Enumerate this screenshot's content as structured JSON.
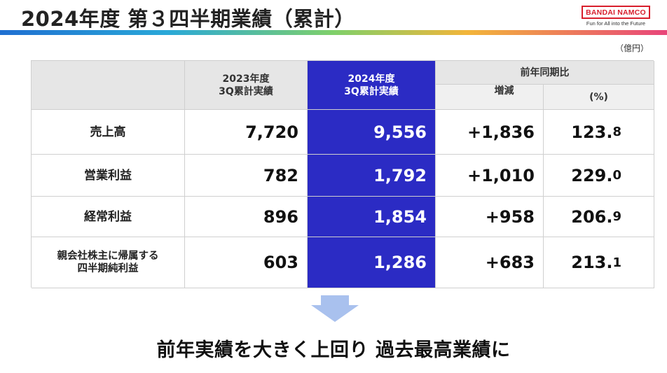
{
  "title": "2024年度 第３四半期業績（累計）",
  "logo": {
    "brand": "BANDAI NAMCO",
    "tagline": "Fun for All into the Future",
    "color": "#d81e2c"
  },
  "unit": "（億円）",
  "table": {
    "headers": {
      "prev_line1": "2023年度",
      "prev_line2": "3Q累計実績",
      "curr_line1": "2024年度",
      "curr_line2": "3Q累計実績",
      "yoy": "前年同期比",
      "change": "増減",
      "percent": "(%)"
    },
    "rows": [
      {
        "label": "売上高",
        "label2": "",
        "prev": "7,720",
        "curr": "9,556",
        "change": "+1,836",
        "pct_int": "123.",
        "pct_dec": "8"
      },
      {
        "label": "営業利益",
        "label2": "",
        "prev": "782",
        "curr": "1,792",
        "change": "+1,010",
        "pct_int": "229.",
        "pct_dec": "0"
      },
      {
        "label": "経常利益",
        "label2": "",
        "prev": "896",
        "curr": "1,854",
        "change": "+958",
        "pct_int": "206.",
        "pct_dec": "9"
      },
      {
        "label": "親会社株主に帰属する",
        "label2": "四半期純利益",
        "prev": "603",
        "curr": "1,286",
        "change": "+683",
        "pct_int": "213.",
        "pct_dec": "1"
      }
    ]
  },
  "conclusion": "前年実績を大きく上回り 過去最高業績に",
  "colors": {
    "accent_blue": "#2b2bc4",
    "header_gray": "#e6e6e6",
    "arrow": "#a9c1ee"
  }
}
